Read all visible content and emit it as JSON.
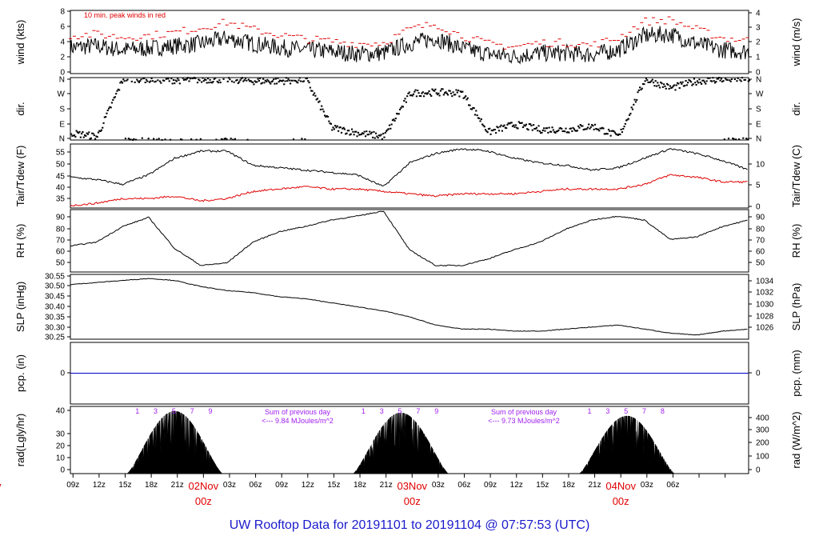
{
  "title": "UW Rooftop Data for 20191101  to  20191104 @ 07:57:53  (UTC)",
  "x_axis": {
    "hour_labels": [
      "09z",
      "12z",
      "15z",
      "18z",
      "21z",
      "03z",
      "06z",
      "09z",
      "12z",
      "15z",
      "18z",
      "21z",
      "03z",
      "06z",
      "09z",
      "12z",
      "15z",
      "18z",
      "21z",
      "03z",
      "06z"
    ],
    "day_markers": [
      {
        "date": "Nov",
        "hour": "z",
        "clip": true
      },
      {
        "date": "02Nov",
        "hour": "00z"
      },
      {
        "date": "03Nov",
        "hour": "00z"
      },
      {
        "date": "04Nov",
        "hour": "00z"
      }
    ]
  },
  "colors": {
    "primary": "#000000",
    "secondary": "#e00000",
    "precip": "#0000cc",
    "annotation": "#a020f0",
    "title": "#1a1acc"
  },
  "chart_data": [
    {
      "type": "line",
      "panel": "wind",
      "ylabel_left": "wind (kts)",
      "ylabel_right": "wind (m/s)",
      "left_ticks": [
        "0",
        "2",
        "4",
        "6",
        "8"
      ],
      "right_ticks": [
        "0",
        "1",
        "2",
        "3",
        "4"
      ],
      "ylim": [
        0,
        8
      ],
      "annotation": "10 min. peak winds in red",
      "x_hours_since_start": [
        0,
        3,
        6,
        9,
        12,
        15,
        18,
        21,
        24,
        27,
        30,
        33,
        36,
        39,
        42,
        45,
        48,
        51,
        54,
        57,
        60,
        63,
        66,
        69,
        72,
        75,
        78
      ],
      "series": [
        {
          "name": "wind",
          "color": "#000000",
          "values": [
            3.3,
            3.5,
            3.0,
            3.2,
            3.5,
            3.8,
            4.5,
            3.8,
            3.3,
            3.0,
            2.8,
            2.5,
            2.6,
            3.8,
            4.5,
            3.2,
            2.5,
            2.2,
            2.6,
            2.6,
            2.4,
            3.0,
            4.8,
            5.0,
            3.8,
            3.0,
            2.8
          ]
        },
        {
          "name": "10 min. peak",
          "color": "#e00000",
          "values": [
            4.8,
            5.0,
            4.6,
            4.8,
            5.2,
            5.8,
            6.5,
            5.6,
            4.9,
            4.4,
            4.1,
            3.8,
            3.9,
            5.6,
            6.3,
            4.8,
            3.8,
            3.4,
            3.9,
            3.9,
            3.6,
            4.5,
            6.6,
            6.8,
            5.6,
            4.5,
            4.2
          ]
        }
      ]
    },
    {
      "type": "scatter",
      "panel": "dir",
      "ylabel_left": "dir.",
      "ylabel_right": "dir.",
      "left_ticks": [
        "N",
        "E",
        "S",
        "W",
        "N"
      ],
      "right_ticks": [
        "N",
        "E",
        "S",
        "W",
        "N"
      ],
      "ylim": [
        0,
        360
      ],
      "x_hours_since_start": [
        0,
        3,
        6,
        9,
        12,
        15,
        18,
        21,
        24,
        27,
        30,
        33,
        36,
        39,
        42,
        45,
        48,
        51,
        54,
        57,
        60,
        63,
        66,
        69,
        72,
        75,
        78
      ],
      "values": [
        40,
        20,
        355,
        350,
        345,
        348,
        350,
        340,
        340,
        350,
        70,
        40,
        20,
        270,
        275,
        270,
        45,
        90,
        60,
        60,
        80,
        20,
        350,
        300,
        340,
        350,
        352
      ]
    },
    {
      "type": "line",
      "panel": "temperature",
      "ylabel_left": "Tair/Tdew (F)",
      "ylabel_right": "Tair/Tdew (C)",
      "left_ticks": [
        "35",
        "40",
        "45",
        "50",
        "55"
      ],
      "right_ticks": [
        "0",
        "5",
        "10"
      ],
      "ylim": [
        32,
        59
      ],
      "x_hours_since_start": [
        0,
        3,
        6,
        9,
        12,
        15,
        18,
        21,
        24,
        27,
        30,
        33,
        36,
        39,
        42,
        45,
        48,
        51,
        54,
        57,
        60,
        63,
        66,
        69,
        72,
        75,
        78
      ],
      "series": [
        {
          "name": "Tair",
          "color": "#000000",
          "values": [
            45,
            44,
            42,
            46,
            53,
            56,
            56,
            50,
            49,
            48,
            47,
            46,
            41,
            51,
            55,
            57,
            56,
            53,
            51,
            50,
            48,
            49,
            53,
            57,
            55,
            52,
            48
          ]
        },
        {
          "name": "Tdew",
          "color": "#e00000",
          "values": [
            33,
            34,
            36,
            36,
            37,
            35,
            36,
            39,
            40,
            41,
            40,
            40,
            39,
            38,
            37,
            38,
            38,
            38,
            39,
            40,
            40,
            40,
            42,
            46,
            45,
            43,
            43
          ]
        }
      ]
    },
    {
      "type": "line",
      "panel": "rh",
      "ylabel_left": "RH (%)",
      "ylabel_right": "RH (%)",
      "left_ticks": [
        "50",
        "60",
        "70",
        "80",
        "90"
      ],
      "right_ticks": [
        "50",
        "60",
        "70",
        "80",
        "90"
      ],
      "ylim": [
        45,
        93
      ],
      "x_hours_since_start": [
        0,
        3,
        6,
        9,
        12,
        15,
        18,
        21,
        24,
        27,
        30,
        33,
        36,
        39,
        42,
        45,
        48,
        51,
        54,
        57,
        60,
        63,
        66,
        69,
        72,
        75,
        78
      ],
      "values": [
        65,
        68,
        80,
        87,
        63,
        50,
        52,
        68,
        76,
        80,
        85,
        88,
        92,
        62,
        50,
        50,
        55,
        62,
        68,
        78,
        85,
        88,
        85,
        70,
        72,
        80,
        85
      ]
    },
    {
      "type": "line",
      "panel": "slp",
      "ylabel_left": "SLP (inHg)",
      "ylabel_right": "SLP (hPa)",
      "left_ticks": [
        "30.25",
        "30.30",
        "30.35",
        "30.40",
        "30.45",
        "30.50",
        "30.55"
      ],
      "right_ticks": [
        "1026",
        "1028",
        "1030",
        "1032",
        "1034"
      ],
      "ylim": [
        30.24,
        30.56
      ],
      "x_hours_since_start": [
        0,
        3,
        6,
        9,
        12,
        15,
        18,
        21,
        24,
        27,
        30,
        33,
        36,
        39,
        42,
        45,
        48,
        51,
        54,
        57,
        60,
        63,
        66,
        69,
        72,
        75,
        78
      ],
      "values": [
        30.51,
        30.52,
        30.53,
        30.54,
        30.53,
        30.5,
        30.48,
        30.47,
        30.45,
        30.44,
        30.42,
        30.4,
        30.38,
        30.35,
        30.31,
        30.29,
        30.29,
        30.28,
        30.28,
        30.29,
        30.3,
        30.31,
        30.29,
        30.27,
        30.26,
        30.28,
        30.29
      ]
    },
    {
      "type": "line",
      "panel": "precip",
      "ylabel_left": "pcp. (in)",
      "ylabel_right": "pcp. (mm)",
      "left_ticks": [
        "0"
      ],
      "right_ticks": [
        "0"
      ],
      "ylim": [
        -1,
        1
      ],
      "x_hours_since_start": [
        0,
        78
      ],
      "values": [
        0,
        0
      ]
    },
    {
      "type": "area",
      "panel": "radiation",
      "ylabel_left": "rad(Lgly/hr)",
      "ylabel_right": "rad (W/m^2)",
      "left_ticks": [
        "0",
        "10",
        "20",
        "30",
        "40"
      ],
      "right_ticks": [
        "0",
        "100",
        "200",
        "300",
        "400"
      ],
      "ylim": [
        0,
        42
      ],
      "days": [
        {
          "sunrise_hour": 6.5,
          "sunset_hour": 17.5,
          "peak": 39
        },
        {
          "sunrise_hour": 32.5,
          "sunset_hour": 43.5,
          "peak": 38
        },
        {
          "sunrise_hour": 58.5,
          "sunset_hour": 69.5,
          "peak": 36
        }
      ],
      "hour_markers": [
        "1",
        "3",
        "5",
        "7",
        "9",
        "1",
        "3",
        "5",
        "7",
        "9",
        "1",
        "3",
        "5",
        "7",
        "8"
      ],
      "annotations": [
        {
          "line1": "Sum of previous day",
          "line2": "<--- 9.84 MJoules/m^2"
        },
        {
          "line1": "Sum of previous day",
          "line2": "<--- 9.73 MJoules/m^2"
        }
      ]
    }
  ]
}
